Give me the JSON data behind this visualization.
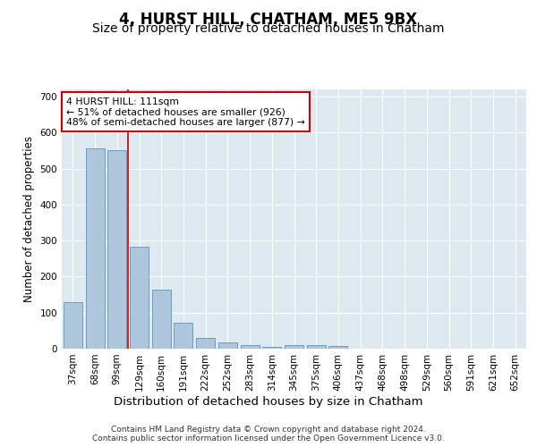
{
  "title1": "4, HURST HILL, CHATHAM, ME5 9BX",
  "title2": "Size of property relative to detached houses in Chatham",
  "xlabel": "Distribution of detached houses by size in Chatham",
  "ylabel": "Number of detached properties",
  "categories": [
    "37sqm",
    "68sqm",
    "99sqm",
    "129sqm",
    "160sqm",
    "191sqm",
    "222sqm",
    "252sqm",
    "283sqm",
    "314sqm",
    "345sqm",
    "375sqm",
    "406sqm",
    "437sqm",
    "468sqm",
    "498sqm",
    "529sqm",
    "560sqm",
    "591sqm",
    "621sqm",
    "652sqm"
  ],
  "values": [
    128,
    555,
    552,
    283,
    163,
    72,
    29,
    17,
    9,
    6,
    10,
    10,
    8,
    0,
    0,
    0,
    0,
    0,
    0,
    0,
    0
  ],
  "bar_color": "#aec6dc",
  "bar_edgecolor": "#6a9fc0",
  "vline_x": 2.5,
  "annotation_text": "4 HURST HILL: 111sqm\n← 51% of detached houses are smaller (926)\n48% of semi-detached houses are larger (877) →",
  "annotation_box_color": "#ffffff",
  "annotation_box_edgecolor": "#cc0000",
  "annotation_text_color": "#000000",
  "vline_color": "#cc0000",
  "ylim": [
    0,
    720
  ],
  "yticks": [
    0,
    100,
    200,
    300,
    400,
    500,
    600,
    700
  ],
  "background_color": "#dde8f0",
  "grid_color": "#ffffff",
  "footer_text": "Contains HM Land Registry data © Crown copyright and database right 2024.\nContains public sector information licensed under the Open Government Licence v3.0.",
  "title1_fontsize": 12,
  "title2_fontsize": 10,
  "xlabel_fontsize": 9.5,
  "ylabel_fontsize": 8.5,
  "tick_fontsize": 7.5,
  "footer_fontsize": 6.5,
  "fig_bg": "#ffffff"
}
